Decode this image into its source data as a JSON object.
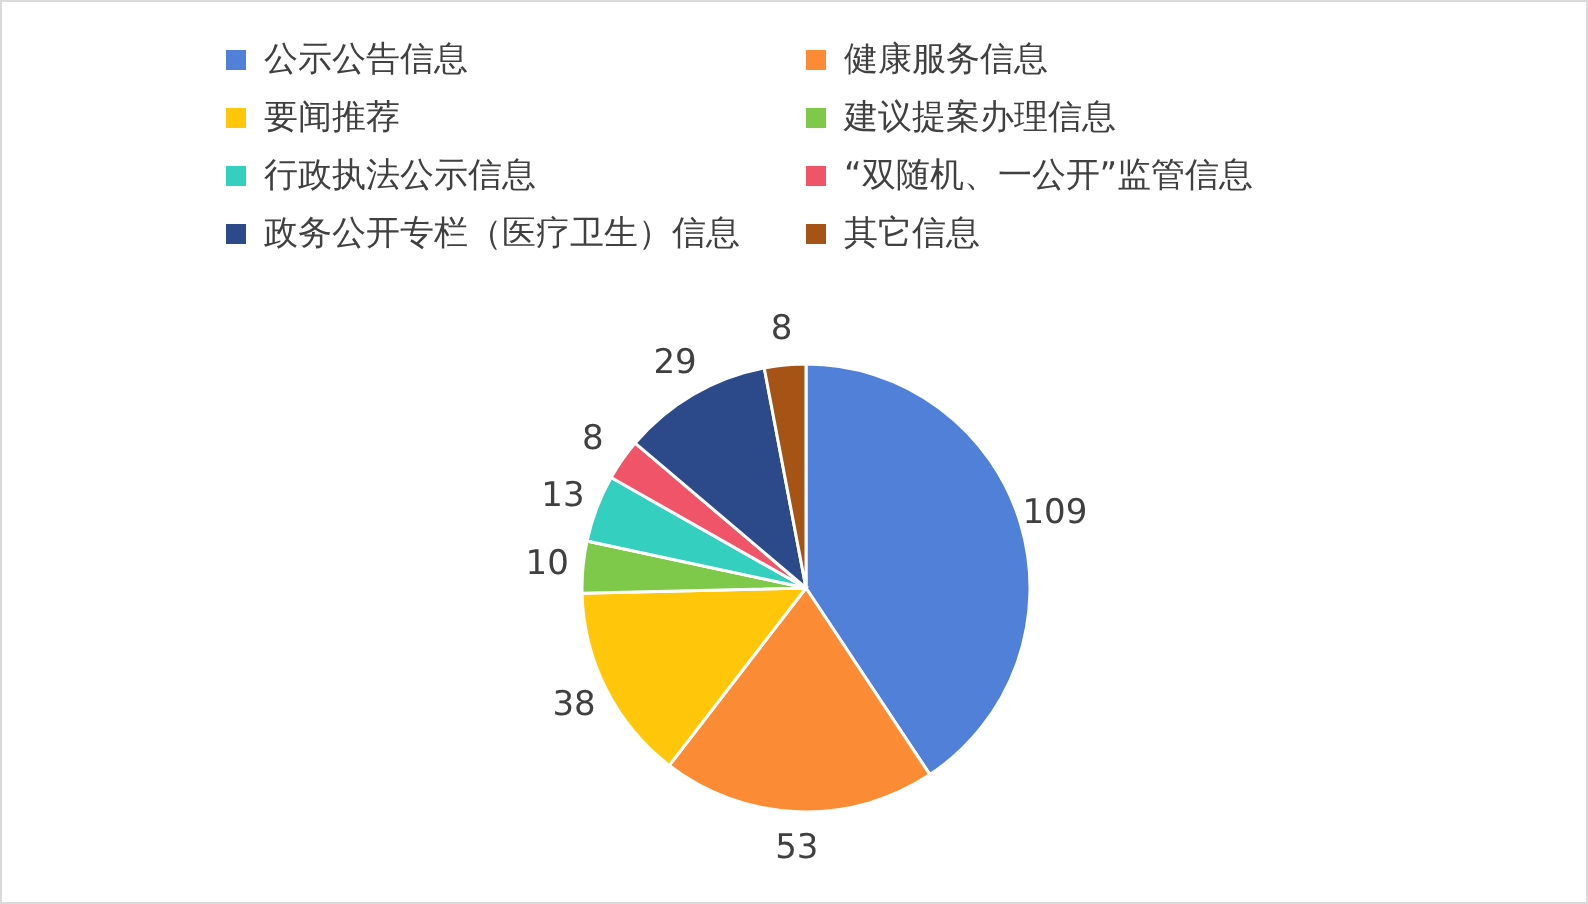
{
  "chart_data": {
    "type": "pie",
    "categories": [
      "公示公告信息",
      "健康服务信息",
      "要闻推荐",
      "建议提案办理信息",
      "行政执法公示信息",
      "“双随机、一公开”监管信息",
      "政务公开专栏（医疗卫生）信息",
      "其它信息"
    ],
    "values": [
      109,
      53,
      38,
      10,
      13,
      8,
      29,
      8
    ],
    "colors": [
      "#5080d8",
      "#fb8c35",
      "#ffc60a",
      "#7ec84a",
      "#35cfc0",
      "#f05468",
      "#2c4a8a",
      "#a65316"
    ],
    "data_labels": true,
    "legend": "top"
  }
}
